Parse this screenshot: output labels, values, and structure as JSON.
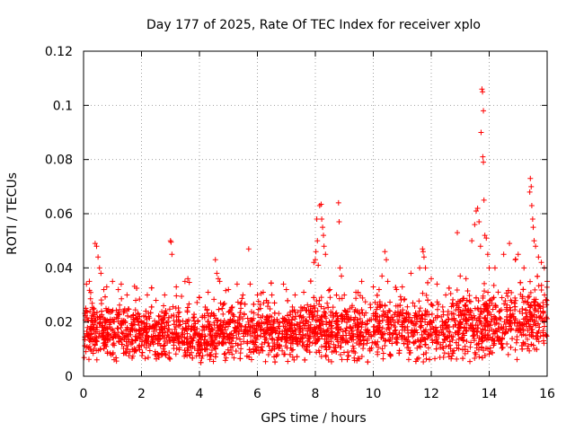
{
  "chart_data": {
    "type": "scatter",
    "title": "Day 177 of 2025, Rate Of TEC Index for receiver xplo",
    "xlabel": "GPS time / hours",
    "ylabel": "ROTI / TECUs",
    "xlim": [
      0,
      16
    ],
    "ylim": [
      0,
      0.12
    ],
    "x_ticks": [
      0,
      2,
      4,
      6,
      8,
      10,
      12,
      14,
      16
    ],
    "x_tick_labels": [
      "0",
      "2",
      "4",
      "6",
      "8",
      "10",
      "12",
      "14",
      "16"
    ],
    "y_ticks": [
      0,
      0.02,
      0.04,
      0.06,
      0.08,
      0.1,
      0.12
    ],
    "y_tick_labels": [
      "0",
      "0.02",
      "0.04",
      "0.06",
      "0.08",
      "0.1",
      "0.12"
    ],
    "grid": true,
    "marker": "+",
    "color": "#ff0000",
    "series": [
      {
        "name": "ROTI",
        "points": [
          [
            0.1,
            0.034
          ],
          [
            0.2,
            0.035
          ],
          [
            0.4,
            0.049
          ],
          [
            0.45,
            0.048
          ],
          [
            0.5,
            0.044
          ],
          [
            0.55,
            0.04
          ],
          [
            0.6,
            0.038
          ],
          [
            0.7,
            0.032
          ],
          [
            0.8,
            0.033
          ],
          [
            1.0,
            0.035
          ],
          [
            1.2,
            0.032
          ],
          [
            1.3,
            0.034
          ],
          [
            1.5,
            0.03
          ],
          [
            1.8,
            0.028
          ],
          [
            2.2,
            0.03
          ],
          [
            2.5,
            0.028
          ],
          [
            2.8,
            0.03
          ],
          [
            3.0,
            0.05
          ],
          [
            3.02,
            0.0495
          ],
          [
            3.05,
            0.045
          ],
          [
            3.2,
            0.033
          ],
          [
            3.5,
            0.035
          ],
          [
            3.6,
            0.036
          ],
          [
            4.0,
            0.029
          ],
          [
            4.3,
            0.031
          ],
          [
            4.55,
            0.043
          ],
          [
            4.6,
            0.038
          ],
          [
            4.65,
            0.036
          ],
          [
            4.7,
            0.035
          ],
          [
            5.0,
            0.032
          ],
          [
            5.3,
            0.034
          ],
          [
            5.5,
            0.03
          ],
          [
            5.7,
            0.047
          ],
          [
            5.75,
            0.034
          ],
          [
            6.0,
            0.03
          ],
          [
            6.2,
            0.031
          ],
          [
            6.5,
            0.03
          ],
          [
            6.9,
            0.034
          ],
          [
            7.0,
            0.032
          ],
          [
            7.3,
            0.03
          ],
          [
            7.6,
            0.031
          ],
          [
            7.95,
            0.042
          ],
          [
            8.0,
            0.043
          ],
          [
            8.02,
            0.046
          ],
          [
            8.05,
            0.058
          ],
          [
            8.07,
            0.05
          ],
          [
            8.1,
            0.041
          ],
          [
            8.15,
            0.063
          ],
          [
            8.2,
            0.0635
          ],
          [
            8.22,
            0.058
          ],
          [
            8.25,
            0.055
          ],
          [
            8.28,
            0.052
          ],
          [
            8.3,
            0.048
          ],
          [
            8.35,
            0.045
          ],
          [
            8.5,
            0.032
          ],
          [
            8.8,
            0.064
          ],
          [
            8.82,
            0.057
          ],
          [
            8.85,
            0.04
          ],
          [
            8.9,
            0.037
          ],
          [
            9.0,
            0.03
          ],
          [
            9.4,
            0.031
          ],
          [
            9.6,
            0.035
          ],
          [
            10.0,
            0.033
          ],
          [
            10.2,
            0.032
          ],
          [
            10.3,
            0.037
          ],
          [
            10.4,
            0.046
          ],
          [
            10.45,
            0.043
          ],
          [
            10.5,
            0.035
          ],
          [
            10.8,
            0.032
          ],
          [
            11.0,
            0.033
          ],
          [
            11.3,
            0.038
          ],
          [
            11.6,
            0.04
          ],
          [
            11.7,
            0.047
          ],
          [
            11.72,
            0.046
          ],
          [
            11.75,
            0.044
          ],
          [
            11.8,
            0.04
          ],
          [
            12.0,
            0.036
          ],
          [
            12.2,
            0.034
          ],
          [
            12.5,
            0.03
          ],
          [
            12.9,
            0.053
          ],
          [
            13.0,
            0.037
          ],
          [
            13.2,
            0.036
          ],
          [
            13.4,
            0.05
          ],
          [
            13.5,
            0.056
          ],
          [
            13.55,
            0.061
          ],
          [
            13.6,
            0.062
          ],
          [
            13.65,
            0.057
          ],
          [
            13.7,
            0.048
          ],
          [
            13.75,
            0.106
          ],
          [
            13.77,
            0.105
          ],
          [
            13.8,
            0.098
          ],
          [
            13.72,
            0.09
          ],
          [
            13.78,
            0.081
          ],
          [
            13.8,
            0.079
          ],
          [
            13.82,
            0.065
          ],
          [
            13.85,
            0.052
          ],
          [
            13.9,
            0.051
          ],
          [
            13.95,
            0.045
          ],
          [
            14.0,
            0.04
          ],
          [
            14.2,
            0.04
          ],
          [
            14.5,
            0.045
          ],
          [
            14.7,
            0.049
          ],
          [
            14.9,
            0.043
          ],
          [
            15.0,
            0.045
          ],
          [
            15.2,
            0.04
          ],
          [
            15.4,
            0.068
          ],
          [
            15.42,
            0.073
          ],
          [
            15.45,
            0.07
          ],
          [
            15.47,
            0.063
          ],
          [
            15.5,
            0.058
          ],
          [
            15.52,
            0.055
          ],
          [
            15.55,
            0.05
          ],
          [
            15.6,
            0.048
          ],
          [
            15.7,
            0.044
          ],
          [
            15.8,
            0.042
          ],
          [
            15.9,
            0.04
          ],
          [
            16.0,
            0.035
          ]
        ],
        "band": [
          [
            0.0,
            0.018,
            0.012
          ],
          [
            1.0,
            0.016,
            0.011
          ],
          [
            2.0,
            0.016,
            0.011
          ],
          [
            3.0,
            0.016,
            0.011
          ],
          [
            4.0,
            0.015,
            0.01
          ],
          [
            5.0,
            0.016,
            0.011
          ],
          [
            6.0,
            0.017,
            0.011
          ],
          [
            7.0,
            0.016,
            0.011
          ],
          [
            8.0,
            0.017,
            0.012
          ],
          [
            9.0,
            0.017,
            0.012
          ],
          [
            10.0,
            0.018,
            0.012
          ],
          [
            11.0,
            0.018,
            0.012
          ],
          [
            12.0,
            0.018,
            0.012
          ],
          [
            13.0,
            0.018,
            0.013
          ],
          [
            14.0,
            0.02,
            0.014
          ],
          [
            15.0,
            0.021,
            0.014
          ],
          [
            16.0,
            0.022,
            0.015
          ]
        ]
      }
    ]
  }
}
